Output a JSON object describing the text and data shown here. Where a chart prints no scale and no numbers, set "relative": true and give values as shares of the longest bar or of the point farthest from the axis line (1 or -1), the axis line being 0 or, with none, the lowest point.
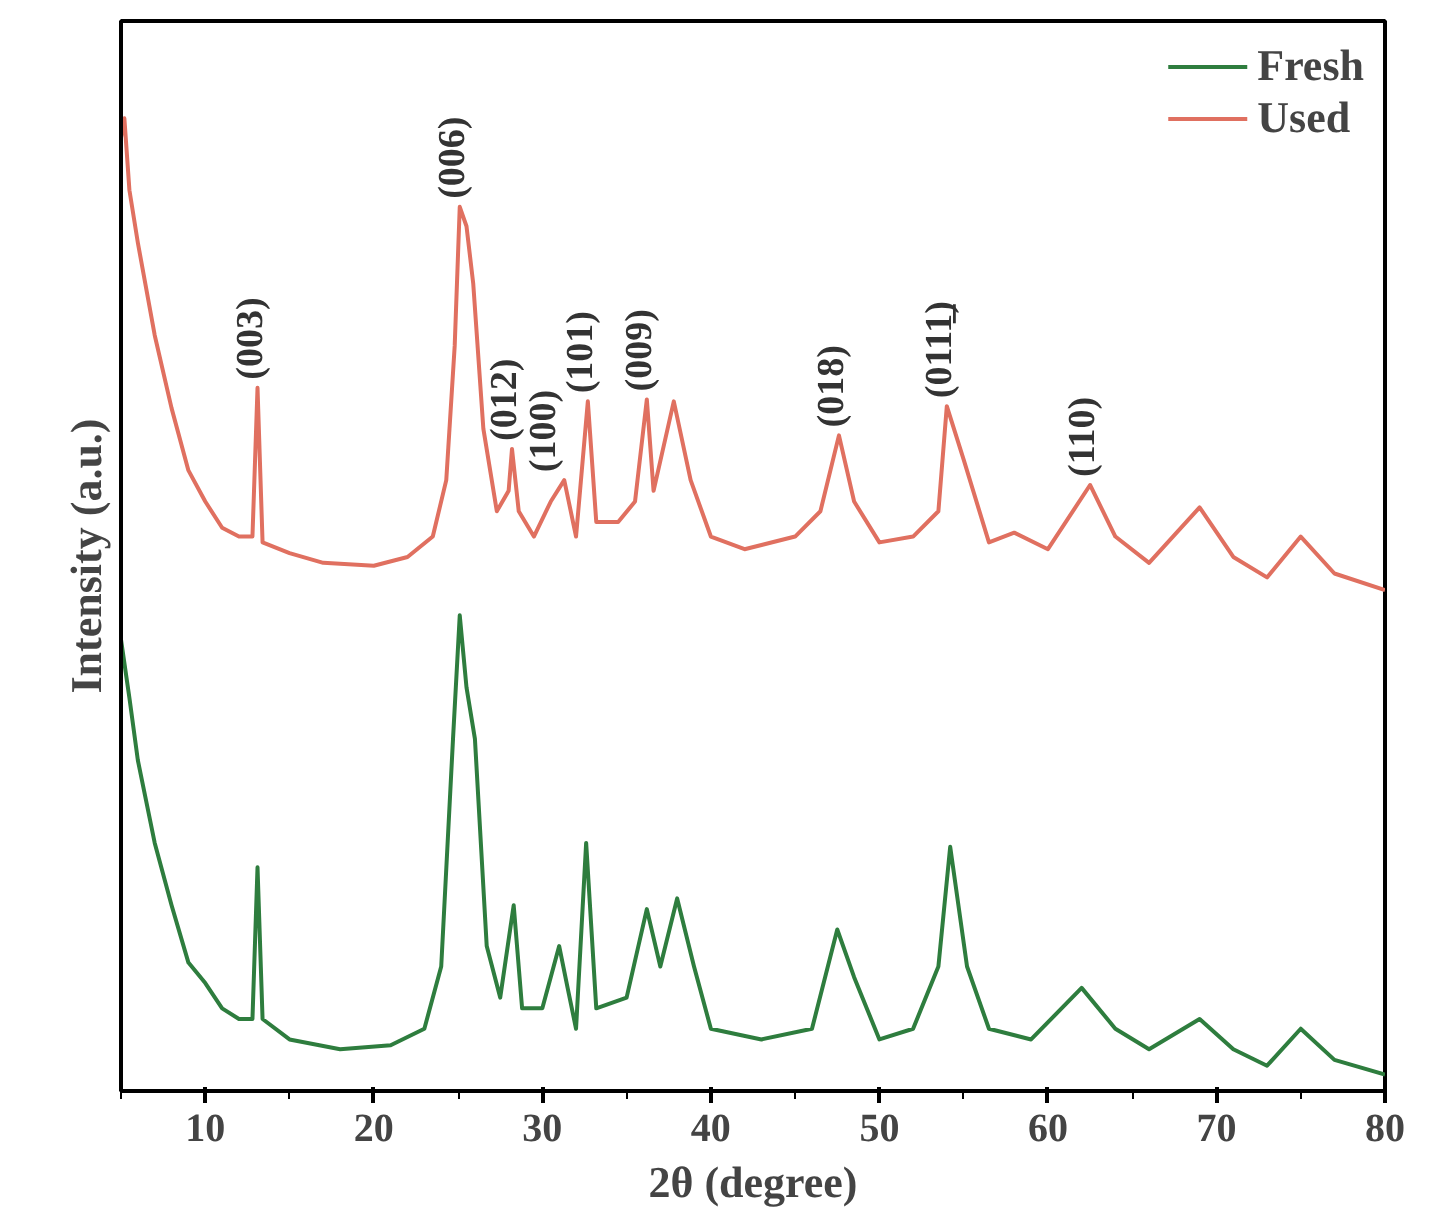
{
  "chart_data": {
    "type": "line",
    "relative": true,
    "xlabel": "2θ (degree)",
    "ylabel": "Intensity (a.u.)",
    "xlim": [
      5,
      80
    ],
    "xticks": [
      10,
      20,
      30,
      40,
      50,
      60,
      70,
      80
    ],
    "grid": false,
    "legend": "top right",
    "marker": "none",
    "line_style": "solid",
    "tick_labels": "x",
    "series": [
      {
        "name": "Fresh",
        "color": "#2e7d3e",
        "x": [
          5,
          5.5,
          6,
          7,
          8,
          9,
          10,
          11,
          12,
          12.8,
          13.1,
          13.4,
          15,
          18,
          21,
          23,
          24,
          24.7,
          25.1,
          25.5,
          26,
          26.7,
          27.5,
          28.3,
          28.8,
          30,
          31,
          31.5,
          32,
          32.6,
          33.2,
          35,
          36.2,
          37,
          38,
          39,
          40,
          43,
          46,
          47.5,
          48.5,
          50,
          52,
          53.5,
          54.2,
          55.2,
          56.5,
          59,
          62,
          64,
          66,
          69,
          71,
          73,
          75,
          77,
          80
        ],
        "values": [
          0.464,
          0.404,
          0.34,
          0.255,
          0.191,
          0.132,
          0.111,
          0.085,
          0.074,
          0.074,
          0.23,
          0.074,
          0.053,
          0.043,
          0.047,
          0.064,
          0.128,
          0.362,
          0.489,
          0.415,
          0.362,
          0.149,
          0.096,
          0.191,
          0.085,
          0.085,
          0.149,
          0.106,
          0.064,
          0.255,
          0.085,
          0.096,
          0.187,
          0.128,
          0.198,
          0.128,
          0.064,
          0.053,
          0.064,
          0.166,
          0.117,
          0.053,
          0.064,
          0.128,
          0.251,
          0.128,
          0.064,
          0.053,
          0.106,
          0.064,
          0.043,
          0.074,
          0.043,
          0.026,
          0.064,
          0.032,
          0.017
        ]
      },
      {
        "name": "Used",
        "color": "#e07060",
        "x": [
          5,
          5.2,
          5.5,
          6,
          7,
          8,
          9,
          10,
          11,
          12,
          12.8,
          13.1,
          13.4,
          15,
          17,
          20,
          22,
          23.5,
          24.3,
          24.8,
          25.1,
          25.5,
          25.9,
          26.5,
          27.3,
          28,
          28.2,
          28.6,
          29.5,
          30.5,
          31.3,
          32,
          32.7,
          33.2,
          34.5,
          35.5,
          36.2,
          36.6,
          37.8,
          38.8,
          40,
          42,
          45,
          46.5,
          47.6,
          48.5,
          50,
          52,
          53.5,
          54,
          55,
          56.5,
          58,
          60,
          62.5,
          64,
          66,
          69,
          71,
          73,
          75,
          77,
          80
        ],
        "values": [
          0.98,
          1.0,
          0.926,
          0.872,
          0.777,
          0.702,
          0.638,
          0.606,
          0.579,
          0.57,
          0.57,
          0.723,
          0.564,
          0.553,
          0.543,
          0.54,
          0.549,
          0.57,
          0.628,
          0.766,
          0.909,
          0.889,
          0.83,
          0.681,
          0.596,
          0.617,
          0.66,
          0.596,
          0.57,
          0.606,
          0.628,
          0.57,
          0.709,
          0.585,
          0.585,
          0.606,
          0.711,
          0.617,
          0.709,
          0.628,
          0.57,
          0.557,
          0.57,
          0.596,
          0.674,
          0.606,
          0.564,
          0.57,
          0.596,
          0.704,
          0.649,
          0.564,
          0.574,
          0.557,
          0.623,
          0.57,
          0.543,
          0.6,
          0.549,
          0.528,
          0.57,
          0.532,
          0.515
        ]
      }
    ],
    "annotations": [
      {
        "text": "(003)",
        "x": 13.1,
        "y": 0.723
      },
      {
        "text": "(006)",
        "x": 25.1,
        "y": 0.909
      },
      {
        "text": "(012)",
        "x": 28.2,
        "y": 0.66
      },
      {
        "text": "(100)",
        "x": 30.5,
        "y": 0.628
      },
      {
        "text": "(101)",
        "x": 32.7,
        "y": 0.709
      },
      {
        "text": "(009)",
        "x": 36.2,
        "y": 0.711
      },
      {
        "text": "(018)",
        "x": 47.6,
        "y": 0.674
      },
      {
        "text": "(0111̲)",
        "x": 54,
        "y": 0.704
      },
      {
        "text": "(110)",
        "x": 62.5,
        "y": 0.623
      }
    ]
  }
}
